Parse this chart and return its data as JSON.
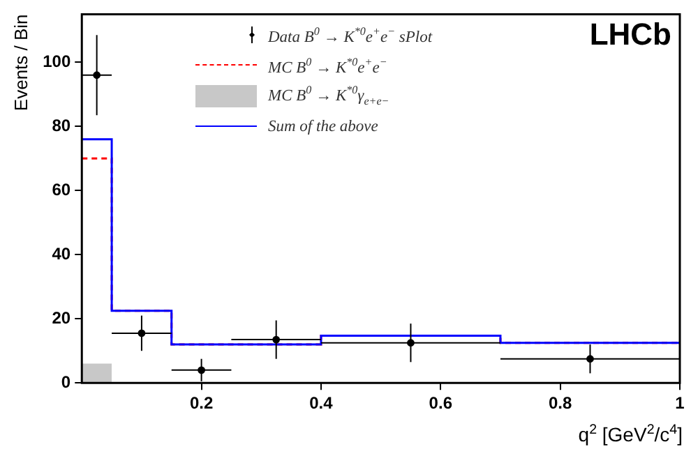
{
  "chart_data": {
    "type": "histogram",
    "xlabel": "q$^{2}$  [GeV$^{2}$/c$^{4}$]",
    "ylabel": "Events / Bin",
    "annotations": [
      "LHCb"
    ],
    "xlim": [
      0,
      1
    ],
    "xticks": [
      0.2,
      0.4,
      0.6,
      0.8,
      1
    ],
    "ylim": [
      0,
      115
    ],
    "yticks": [
      0,
      20,
      40,
      60,
      80,
      100
    ],
    "grid": false,
    "legend": "top",
    "series": [
      {
        "type": "scatter",
        "name": "Data B$^{0}$ → K$^{*0}$e$^{+}$e$^{−}$ sPlot",
        "color": "#000000",
        "marker": "circle",
        "x": [
          0.025,
          0.1,
          0.2,
          0.325,
          0.55,
          0.85
        ],
        "values": [
          96,
          15.5,
          4,
          13.5,
          12.5,
          7.5
        ],
        "errors": [
          12.5,
          5.5,
          3.5,
          6,
          6,
          4.5
        ],
        "xerrors": [
          0.025,
          0.05,
          0.05,
          0.075,
          0.15,
          0.15
        ]
      },
      {
        "name": "MC B$^{0}$ → K$^{*0}$e$^{+}$e$^{−}$",
        "color": "#ff0000",
        "line_style": "dashed",
        "bins": [
          0,
          0.05,
          0.15,
          0.4,
          0.7,
          1
        ],
        "values": [
          70,
          22.5,
          12,
          14.7,
          12.5
        ]
      },
      {
        "name": "MC B$^{0}$ → K$^{*0}$γ$_{e+e−}$",
        "color": "#c8c8c8",
        "bins": [
          0,
          0.05
        ],
        "values": [
          6
        ]
      },
      {
        "name": "Sum of the above",
        "color": "#0000ff",
        "line_style": "solid",
        "bins": [
          0,
          0.05,
          0.15,
          0.4,
          0.7,
          1
        ],
        "values": [
          76,
          22.5,
          12,
          14.7,
          12.5
        ]
      }
    ]
  }
}
